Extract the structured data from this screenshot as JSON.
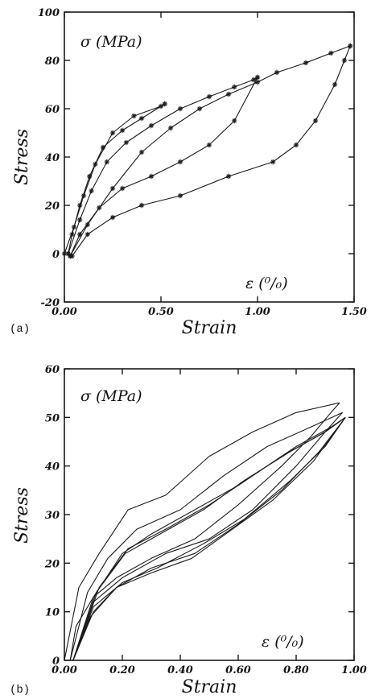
{
  "colors": {
    "ink": "#1a1a1a",
    "background": "#ffffff"
  },
  "chart_data": [
    {
      "type": "line",
      "panel_label": "(a)",
      "title": "",
      "xlabel": "Strain",
      "ylabel": "Stress",
      "stress_annotation": "σ (MPa)",
      "strain_annotation": "ε (⁰/₀)",
      "xlim": [
        0,
        1.5
      ],
      "ylim": [
        -20,
        100
      ],
      "x_ticks": [
        "0.00",
        "0.50",
        "1.00",
        "1.50"
      ],
      "y_ticks": [
        "-20",
        "0",
        "20",
        "40",
        "60",
        "80",
        "100"
      ],
      "grid": false,
      "series": [
        {
          "marker": "star",
          "x": [
            0.0,
            0.05,
            0.1,
            0.16,
            0.25,
            0.36,
            0.5,
            0.52
          ],
          "y": [
            0,
            11,
            24,
            37,
            50,
            57,
            61,
            62
          ]
        },
        {
          "marker": "star",
          "x": [
            0.52,
            0.4,
            0.3,
            0.2,
            0.13,
            0.08,
            0.04,
            0.02
          ],
          "y": [
            62,
            56,
            51,
            44,
            32,
            20,
            8,
            0
          ]
        },
        {
          "marker": "star",
          "x": [
            0.02,
            0.08,
            0.14,
            0.22,
            0.32,
            0.45,
            0.6,
            0.75,
            0.88,
            0.98,
            1.0
          ],
          "y": [
            0,
            14,
            26,
            38,
            46,
            53,
            60,
            65,
            69,
            72,
            73
          ]
        },
        {
          "marker": "star",
          "x": [
            1.0,
            0.88,
            0.75,
            0.6,
            0.45,
            0.3,
            0.18,
            0.08,
            0.03
          ],
          "y": [
            73,
            55,
            45,
            38,
            32,
            27,
            19,
            8,
            -1
          ]
        },
        {
          "marker": "star",
          "x": [
            0.03,
            0.12,
            0.25,
            0.4,
            0.55,
            0.7,
            0.85,
            1.0,
            1.1,
            1.25,
            1.38,
            1.48
          ],
          "y": [
            -1,
            12,
            27,
            42,
            52,
            60,
            66,
            71,
            75,
            79,
            83,
            86
          ]
        },
        {
          "marker": "star",
          "x": [
            1.48,
            1.45,
            1.4,
            1.3,
            1.2,
            1.08,
            0.85,
            0.6,
            0.4,
            0.25,
            0.12,
            0.04
          ],
          "y": [
            86,
            80,
            70,
            55,
            45,
            38,
            32,
            24,
            20,
            15,
            8,
            -1
          ]
        }
      ]
    },
    {
      "type": "line",
      "panel_label": "(b)",
      "title": "",
      "xlabel": "Strain",
      "ylabel": "Stress",
      "stress_annotation": "σ (MPa)",
      "strain_annotation": "ε (⁰/₀)",
      "xlim": [
        0,
        1.0
      ],
      "ylim": [
        0,
        60
      ],
      "x_ticks": [
        "0.00",
        "0.20",
        "0.40",
        "0.60",
        "0.80",
        "1.00"
      ],
      "y_ticks": [
        "0",
        "10",
        "20",
        "30",
        "40",
        "50",
        "60"
      ],
      "grid": false,
      "series": [
        {
          "x": [
            0.0,
            0.05,
            0.12,
            0.22,
            0.35,
            0.5,
            0.65,
            0.8,
            0.95
          ],
          "y": [
            0,
            15,
            22,
            31,
            34,
            42,
            47,
            51,
            53
          ]
        },
        {
          "x": [
            0.95,
            0.92,
            0.85,
            0.75,
            0.6,
            0.45,
            0.3,
            0.18,
            0.1,
            0.04,
            0.02
          ],
          "y": [
            53,
            51,
            46,
            40,
            32,
            25,
            21,
            17,
            13,
            7,
            0
          ]
        },
        {
          "x": [
            0.02,
            0.08,
            0.15,
            0.25,
            0.4,
            0.55,
            0.7,
            0.85,
            0.96
          ],
          "y": [
            0,
            14,
            21,
            27,
            31,
            38,
            44,
            48,
            51
          ]
        },
        {
          "x": [
            0.96,
            0.9,
            0.8,
            0.65,
            0.5,
            0.35,
            0.2,
            0.1,
            0.03
          ],
          "y": [
            51,
            47,
            40,
            31,
            25,
            22,
            17,
            12,
            0
          ]
        },
        {
          "x": [
            0.03,
            0.1,
            0.2,
            0.3,
            0.45,
            0.6,
            0.75,
            0.9,
            0.97
          ],
          "y": [
            0,
            13,
            22,
            26,
            31,
            36,
            42,
            47,
            50
          ]
        },
        {
          "x": [
            0.97,
            0.9,
            0.78,
            0.62,
            0.48,
            0.32,
            0.2,
            0.1,
            0.03
          ],
          "y": [
            50,
            44,
            37,
            29,
            24,
            19,
            16,
            11,
            0
          ]
        },
        {
          "x": [
            0.03,
            0.12,
            0.22,
            0.35,
            0.5,
            0.65,
            0.8,
            0.92,
            0.97
          ],
          "y": [
            0,
            15,
            23,
            27,
            32,
            38,
            44,
            48,
            50
          ]
        },
        {
          "x": [
            0.97,
            0.88,
            0.75,
            0.6,
            0.45,
            0.3,
            0.18,
            0.1,
            0.03
          ],
          "y": [
            50,
            43,
            35,
            28,
            22,
            19,
            15,
            10,
            0
          ]
        },
        {
          "x": [
            0.03,
            0.11,
            0.21,
            0.33,
            0.48,
            0.62,
            0.78,
            0.9,
            0.97
          ],
          "y": [
            0,
            14,
            22,
            26,
            31,
            37,
            43,
            47,
            50
          ]
        },
        {
          "x": [
            0.97,
            0.86,
            0.72,
            0.58,
            0.44,
            0.3,
            0.18,
            0.09,
            0.03
          ],
          "y": [
            50,
            41,
            33,
            27,
            21,
            18,
            15,
            9,
            0
          ]
        }
      ]
    }
  ]
}
